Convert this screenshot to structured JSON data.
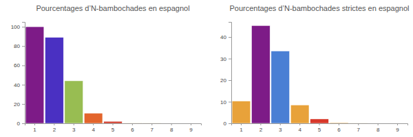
{
  "chart_data": [
    {
      "type": "bar",
      "title": "Pourcentages d’N‑bambochades en espagnol",
      "categories": [
        "1",
        "2",
        "3",
        "4",
        "5",
        "6",
        "7",
        "8",
        "9"
      ],
      "values": [
        100,
        89,
        44,
        10.5,
        2,
        0.3,
        0.1,
        0,
        0
      ],
      "colors": [
        "#7d1b87",
        "#4a30c2",
        "#98bd52",
        "#e3652c",
        "#cf3a2a",
        "#e8a23a",
        "#e8a23a",
        "#e8a23a",
        "#e8a23a"
      ],
      "ylim": [
        0,
        105
      ],
      "yticks": [
        0,
        20,
        40,
        60,
        80,
        100
      ]
    },
    {
      "type": "bar",
      "title": "Pourcentages d’N‑bambochades strictes en espagnol",
      "categories": [
        "1",
        "2",
        "3",
        "4",
        "5",
        "6",
        "7",
        "8",
        "9"
      ],
      "values": [
        10.3,
        45.3,
        33.5,
        8.5,
        2,
        0.3,
        0.1,
        0,
        0
      ],
      "colors": [
        "#e8a23a",
        "#7d1b87",
        "#4a7fd4",
        "#e8a23a",
        "#d8392b",
        "#e8a23a",
        "#e8a23a",
        "#e8a23a",
        "#e8a23a"
      ],
      "ylim": [
        0,
        47
      ],
      "yticks": [
        0,
        10,
        20,
        30,
        40
      ]
    }
  ]
}
